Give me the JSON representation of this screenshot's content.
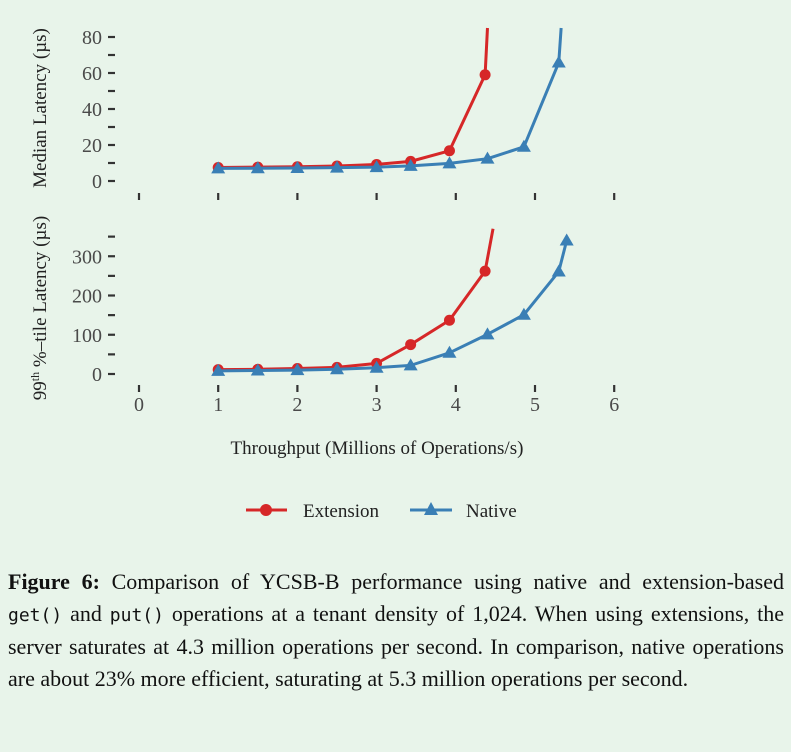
{
  "colors": {
    "extension": "#d62728",
    "native": "#3a7fb5",
    "background": "#e8f4ea"
  },
  "chart_data": [
    {
      "type": "line",
      "ylabel": "Median Latency (µs)",
      "ylim": [
        0,
        80
      ],
      "yticks": [
        0,
        20,
        40,
        60,
        80
      ],
      "xlim": [
        0,
        6
      ],
      "xticks": [
        0,
        1,
        2,
        3,
        4,
        5,
        6
      ],
      "series": [
        {
          "name": "Extension",
          "marker": "circle",
          "x": [
            1.0,
            1.5,
            2.0,
            2.5,
            3.0,
            3.43,
            3.92,
            4.37,
            4.4
          ],
          "y": [
            7.5,
            7.7,
            7.9,
            8.3,
            9.2,
            10.9,
            16.8,
            59.0,
            85
          ],
          "marker_count": 8
        },
        {
          "name": "Native",
          "marker": "triangle",
          "x": [
            1.0,
            1.5,
            2.0,
            2.5,
            3.0,
            3.43,
            3.92,
            4.4,
            4.86,
            5.3,
            5.33
          ],
          "y": [
            7.0,
            7.1,
            7.2,
            7.4,
            7.7,
            8.4,
            9.8,
            12.4,
            19.0,
            65.8,
            85
          ],
          "marker_count": 10
        }
      ]
    },
    {
      "type": "line",
      "ylabel": "99th %-tile Latency (µs)",
      "ylim": [
        0,
        350
      ],
      "yticks": [
        0,
        100,
        200,
        300
      ],
      "xlim": [
        0,
        6
      ],
      "xticks": [
        0,
        1,
        2,
        3,
        4,
        5,
        6
      ],
      "xlabel": "Throughput (Millions of Operations/s)",
      "series": [
        {
          "name": "Extension",
          "marker": "circle",
          "x": [
            1.0,
            1.5,
            2.0,
            2.5,
            3.0,
            3.43,
            3.92,
            4.37,
            4.47
          ],
          "y": [
            11,
            12,
            14,
            17,
            27,
            75,
            137,
            262,
            370
          ],
          "marker_count": 8
        },
        {
          "name": "Native",
          "marker": "triangle",
          "x": [
            1.0,
            1.5,
            2.0,
            2.5,
            3.0,
            3.43,
            3.92,
            4.4,
            4.86,
            5.3,
            5.4
          ],
          "y": [
            8,
            9,
            10,
            12,
            16,
            22,
            54,
            101,
            151,
            261,
            340
          ],
          "marker_count": 11
        }
      ]
    }
  ],
  "axes": {
    "top_ylabel": "Median Latency (µs)",
    "bottom_ylabel_pre": "99",
    "bottom_ylabel_sup": "th",
    "bottom_ylabel_post": " %–tile Latency (µs)",
    "xlabel": "Throughput (Millions of Operations/s)"
  },
  "legend": {
    "placement": "bottom-center",
    "items": [
      "Extension",
      "Native"
    ]
  },
  "caption": {
    "label": "Figure 6:",
    "t1": " Comparison of YCSB-B performance using native and extension-based ",
    "code1": "get()",
    "t2": " and ",
    "code2": "put()",
    "t3": " operations at a tenant density of 1,024. When using extensions, the server saturates at 4.3 million operations per second.  In comparison, native operations are about 23% more efficient, saturating at 5.3 million operations per second."
  }
}
